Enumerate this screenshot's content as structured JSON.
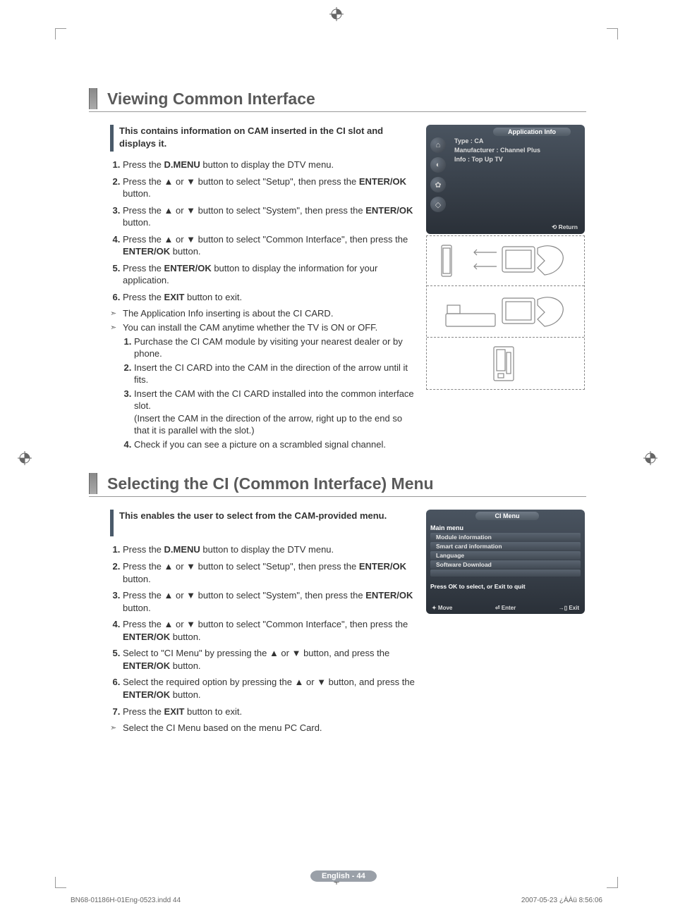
{
  "section1": {
    "title": "Viewing Common Interface",
    "intro": "This contains information on CAM inserted in the CI slot and displays it.",
    "steps": [
      {
        "pre": "Press the ",
        "b": "D.MENU",
        "post": " button to display the DTV menu."
      },
      {
        "pre": "Press the ▲ or ▼ button to select \"Setup\", then press the ",
        "b": "ENTER/OK",
        "post": " button."
      },
      {
        "pre": "Press the ▲ or ▼ button to select \"System\", then press the ",
        "b": "ENTER/OK",
        "post": " button."
      },
      {
        "pre": "Press the ▲ or ▼ button to select \"Common Interface\", then press the ",
        "b": "ENTER/OK",
        "post": " button."
      },
      {
        "pre": "Press the ",
        "b": "ENTER/OK",
        "post": " button to display the information for your application."
      },
      {
        "pre": "Press the ",
        "b": "EXIT",
        "post": " button to exit."
      }
    ],
    "notes": [
      "The Application Info inserting is about the CI CARD.",
      "You can install the CAM anytime whether the TV is ON or OFF."
    ],
    "substeps": [
      "Purchase the CI CAM module by visiting your nearest dealer or by phone.",
      "Insert the CI CARD into the CAM in the direction of the arrow until it fits.",
      "Insert the CAM with the CI CARD installed into the common interface slot.\n(Insert the CAM in the direction of the arrow, right up to the end so that it is parallel with the slot.)",
      "Check if you can see a picture on a scrambled signal channel."
    ]
  },
  "osd1": {
    "title": "Application Info",
    "type": "Type : CA",
    "manufacturer": "Manufacturer : Channel Plus",
    "info": "Info : Top Up TV",
    "return": "⟲ Return",
    "colors": {
      "bg_top": "#4a5460",
      "bg_bot": "#2a3038"
    }
  },
  "section2": {
    "title": "Selecting the CI (Common Interface) Menu",
    "intro": "This enables the user to select from the CAM-provided menu.",
    "steps": [
      {
        "pre": "Press the ",
        "b": "D.MENU",
        "post": " button to display the DTV menu."
      },
      {
        "pre": "Press the ▲ or ▼ button to select \"Setup\", then press the ",
        "b": "ENTER/OK",
        "post": " button."
      },
      {
        "pre": "Press the ▲ or ▼ button to select \"System\", then press the ",
        "b": "ENTER/OK",
        "post": " button."
      },
      {
        "pre": "Press the ▲ or ▼ button to select \"Common Interface\", then press the ",
        "b": "ENTER/OK",
        "post": " button."
      },
      {
        "pre": "Select to \"CI Menu\" by pressing the ▲ or ▼ button, and press the ",
        "b": "ENTER/OK",
        "post": " button."
      },
      {
        "pre": "Select the required option by pressing the ▲ or ▼ button, and press the ",
        "b": "ENTER/OK",
        "post": " button."
      },
      {
        "pre": "Press the ",
        "b": "EXIT",
        "post": " button to exit."
      }
    ],
    "notes": [
      "Select the CI Menu based on the menu PC Card."
    ]
  },
  "osd2": {
    "title": "CI Menu",
    "main": "Main menu",
    "items": [
      "Module information",
      "Smart card information",
      "Language",
      "Software Download"
    ],
    "hint": "Press OK to select, or Exit to quit",
    "footer": {
      "move": "✦ Move",
      "enter": "⏎ Enter",
      "exit": "→▯ Exit"
    }
  },
  "page_label": "English - 44",
  "footer_left": "BN68-01186H-01Eng-0523.indd   44",
  "footer_right": "2007-05-23   ¿ÀÀü 8:56:06"
}
